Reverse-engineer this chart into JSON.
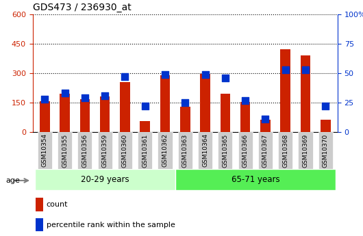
{
  "title": "GDS473 / 236930_at",
  "categories": [
    "GSM10354",
    "GSM10355",
    "GSM10356",
    "GSM10359",
    "GSM10360",
    "GSM10361",
    "GSM10362",
    "GSM10363",
    "GSM10364",
    "GSM10365",
    "GSM10366",
    "GSM10367",
    "GSM10368",
    "GSM10369",
    "GSM10370"
  ],
  "count_values": [
    157,
    195,
    168,
    183,
    255,
    55,
    290,
    128,
    295,
    195,
    153,
    65,
    420,
    390,
    65
  ],
  "percentile_values": [
    28,
    33,
    29,
    31,
    47,
    22,
    49,
    25,
    49,
    46,
    27,
    11,
    53,
    53,
    22
  ],
  "group1_label": "20-29 years",
  "group2_label": "65-71 years",
  "group1_count": 7,
  "group2_count": 8,
  "left_ylim": [
    0,
    600
  ],
  "right_ylim": [
    0,
    100
  ],
  "left_yticks": [
    0,
    150,
    300,
    450,
    600
  ],
  "right_yticks": [
    0,
    25,
    50,
    75,
    100
  ],
  "right_yticklabels": [
    "0",
    "25",
    "50",
    "75",
    "100%"
  ],
  "bar_color": "#cc2200",
  "dot_color": "#0033cc",
  "group1_bg": "#ccffcc",
  "group2_bg": "#55ee55",
  "tick_label_bg": "#cccccc",
  "legend_count_label": "count",
  "legend_percentile_label": "percentile rank within the sample",
  "bar_width": 0.5,
  "dot_size": 55,
  "left_axis_color": "#cc2200",
  "right_axis_color": "#0033cc",
  "fig_width": 5.3,
  "fig_height": 3.45,
  "dpi": 100
}
